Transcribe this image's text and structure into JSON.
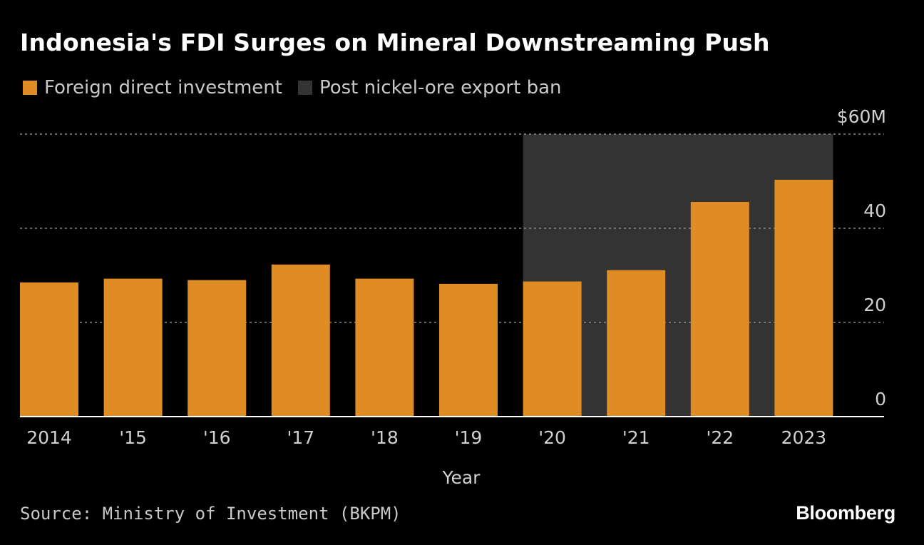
{
  "chart_data": {
    "type": "bar",
    "title": "Indonesia's FDI Surges on Mineral Downstreaming Push",
    "categories": [
      "2014",
      "'15",
      "'16",
      "'17",
      "'18",
      "'19",
      "'20",
      "'21",
      "'22",
      "2023"
    ],
    "series": [
      {
        "name": "Foreign direct investment",
        "values": [
          28.5,
          29.3,
          29.0,
          32.3,
          29.3,
          28.2,
          28.7,
          31.1,
          45.6,
          50.3
        ]
      }
    ],
    "shaded_region": {
      "label": "Post nickel-ore export ban",
      "from": "'20",
      "to": "2023"
    },
    "xlabel": "Year",
    "ylabel": "",
    "ylim": [
      0,
      60
    ],
    "yticks": [
      0,
      20,
      40,
      60
    ],
    "ytick_labels": [
      "0",
      "20",
      "40",
      "$60M"
    ],
    "grid": true,
    "legend_position": "top-left",
    "source": "Source: Ministry of Investment (BKPM)",
    "brand": "Bloomberg",
    "colors": {
      "bar": "#e08c24",
      "shade": "#333333",
      "grid": "#8a8a8a",
      "background": "#000000"
    }
  }
}
